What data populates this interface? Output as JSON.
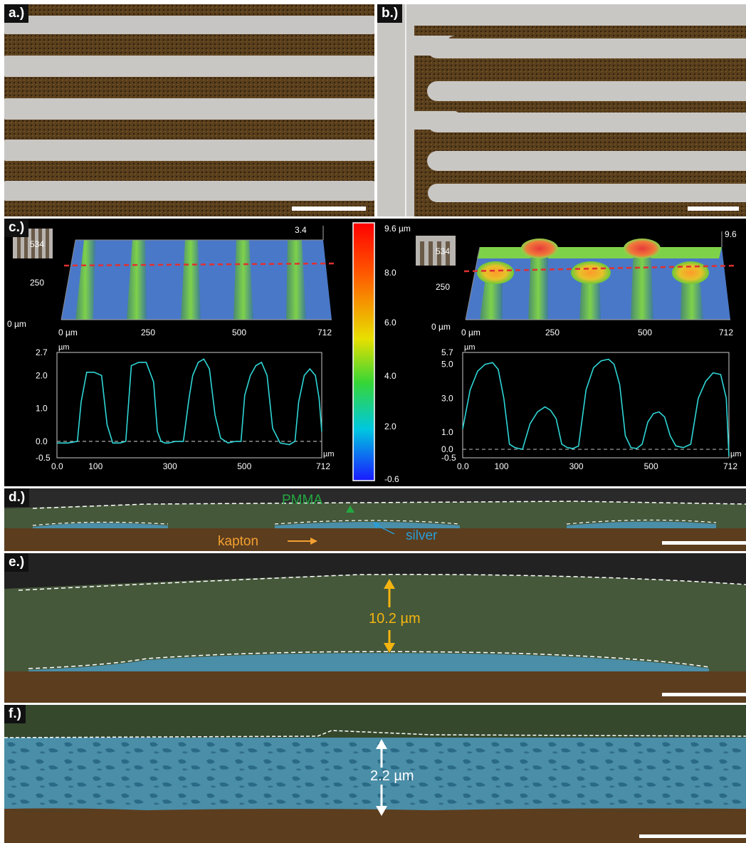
{
  "panels": {
    "a": {
      "label": "a.)"
    },
    "b": {
      "label": "b.)"
    },
    "c": {
      "label": "c.)"
    },
    "d": {
      "label": "d.)"
    },
    "e": {
      "label": "e.)"
    },
    "f": {
      "label": "f.)"
    }
  },
  "colorbar": {
    "top_label": "9.6 µm",
    "ticks": [
      "8.0",
      "6.0",
      "4.0",
      "2.0",
      "-0.6"
    ]
  },
  "left_3d": {
    "zmax": "3.4",
    "y_ticks": [
      "534",
      "250",
      "0 µm"
    ],
    "x_ticks": [
      "0 µm",
      "250",
      "500",
      "712"
    ]
  },
  "right_3d": {
    "zmax": "9.6",
    "y_ticks": [
      "534",
      "250",
      "0 µm"
    ],
    "x_ticks": [
      "0 µm",
      "250",
      "500",
      "712"
    ]
  },
  "chart_data": [
    {
      "type": "line",
      "ylabel": "µm",
      "xlabel": "µm",
      "x_ticks": [
        "0.0",
        "100",
        "300",
        "500",
        "712"
      ],
      "y_ticks": [
        "2.7",
        "2.0",
        "1.0",
        "0.0",
        "-0.5"
      ],
      "xlim": [
        0,
        712
      ],
      "ylim": [
        -0.5,
        2.7
      ],
      "series": [
        {
          "x": [
            0,
            30,
            55,
            65,
            80,
            100,
            120,
            135,
            150,
            170,
            185,
            200,
            220,
            240,
            260,
            270,
            280,
            290,
            300,
            320,
            340,
            355,
            365,
            380,
            395,
            410,
            425,
            440,
            460,
            480,
            495,
            505,
            520,
            535,
            550,
            565,
            580,
            600,
            625,
            640,
            650,
            665,
            680,
            695,
            705,
            712
          ],
          "y": [
            -0.05,
            -0.05,
            0.0,
            1.2,
            2.1,
            2.1,
            2.0,
            0.5,
            -0.05,
            -0.05,
            0.0,
            2.3,
            2.4,
            2.4,
            1.8,
            0.3,
            0.0,
            -0.05,
            -0.05,
            0.0,
            0.0,
            1.3,
            2.0,
            2.4,
            2.5,
            2.2,
            0.8,
            0.1,
            -0.05,
            0.0,
            0.0,
            1.4,
            2.0,
            2.3,
            2.4,
            2.0,
            0.4,
            -0.05,
            -0.1,
            0.0,
            1.2,
            2.0,
            2.2,
            2.0,
            1.3,
            0.3
          ]
        }
      ]
    },
    {
      "type": "line",
      "ylabel": "µm",
      "xlabel": "µm",
      "x_ticks": [
        "0.0",
        "100",
        "300",
        "500",
        "712"
      ],
      "y_ticks": [
        "5.7",
        "5.0",
        "3.0",
        "1.0",
        "0.0",
        "-0.5"
      ],
      "xlim": [
        0,
        712
      ],
      "ylim": [
        -0.5,
        5.7
      ],
      "series": [
        {
          "x": [
            0,
            20,
            40,
            60,
            80,
            95,
            110,
            125,
            140,
            160,
            180,
            200,
            220,
            235,
            250,
            265,
            280,
            295,
            310,
            330,
            350,
            370,
            390,
            405,
            420,
            435,
            450,
            465,
            480,
            495,
            510,
            525,
            540,
            555,
            570,
            590,
            610,
            630,
            650,
            670,
            690,
            705,
            712
          ],
          "y": [
            1.2,
            3.5,
            4.6,
            5.0,
            5.1,
            4.7,
            3.0,
            0.3,
            0.1,
            0.0,
            1.5,
            2.2,
            2.5,
            2.3,
            1.8,
            0.3,
            0.1,
            0.05,
            0.2,
            3.5,
            4.8,
            5.2,
            5.3,
            5.0,
            3.8,
            0.8,
            0.1,
            0.05,
            0.3,
            1.6,
            2.1,
            2.2,
            1.9,
            0.8,
            0.2,
            0.1,
            0.3,
            3.0,
            4.0,
            4.5,
            4.4,
            3.0,
            -0.4
          ]
        }
      ]
    }
  ],
  "sem_labels": {
    "pmma": "PMMA",
    "silver": "silver",
    "kapton": "kapton",
    "thick_e": "10.2 µm",
    "thick_f": "2.2 µm"
  },
  "colors": {
    "pmma": "#45583a",
    "silver": "#4a8ea8",
    "kapton": "#5c3d1e",
    "trace": "#2fd6d6",
    "arrow_e": "#f4b410"
  }
}
